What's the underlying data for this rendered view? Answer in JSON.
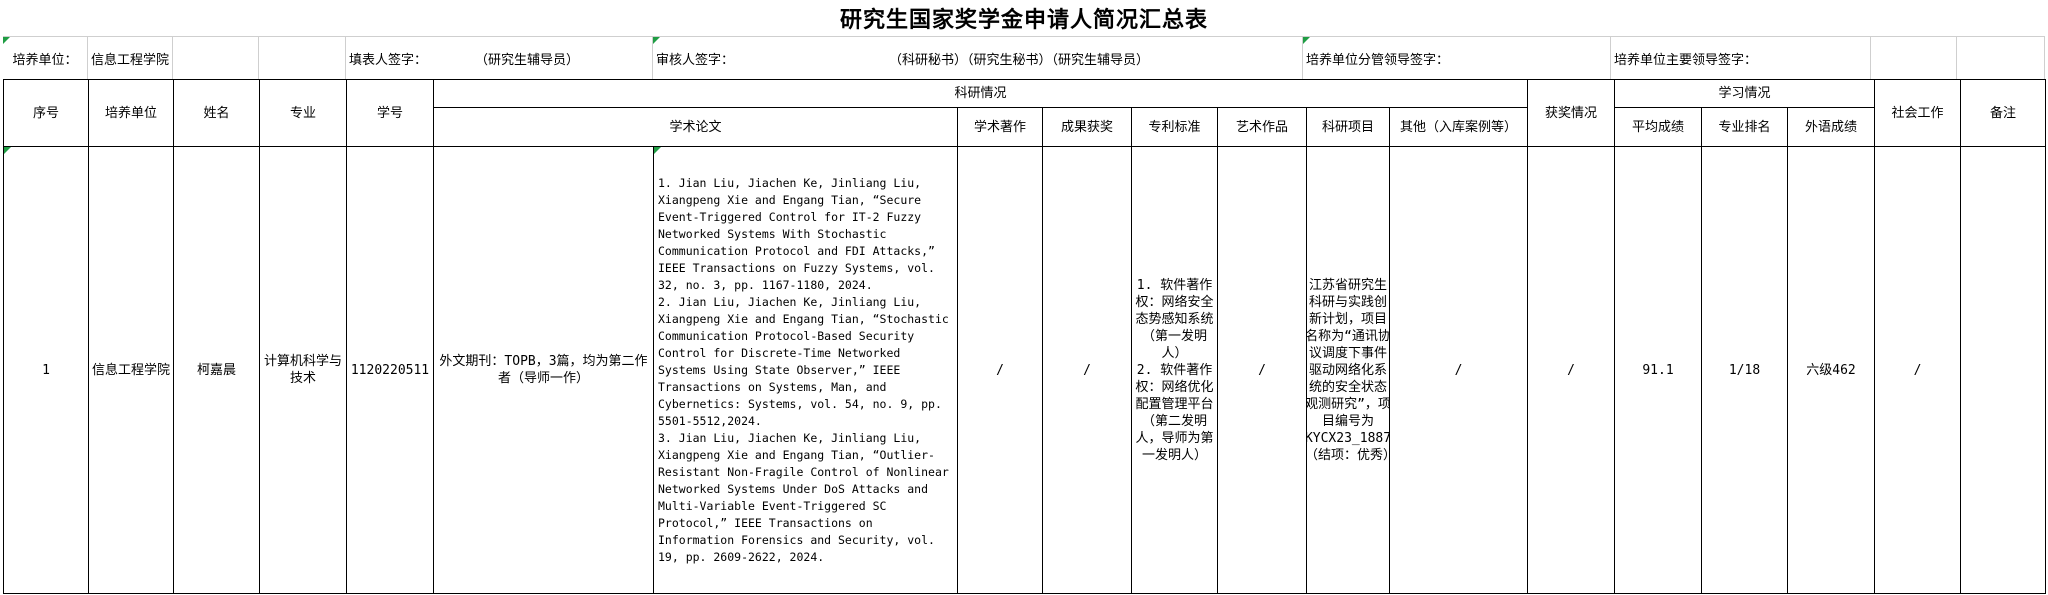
{
  "title": "研究生国家奖学金申请人简况汇总表",
  "meta": {
    "unit_label": "培养单位：",
    "unit_value": "信息工程学院",
    "form_filler_label": "填表人签字：",
    "form_filler_role": "（研究生辅导员）",
    "reviewer_label": "审核人签字：",
    "reviewer_roles": "（科研秘书）（研究生秘书）（研究生辅导员）",
    "deputy_leader_label": "培养单位分管领导签字：",
    "chief_leader_label": "培养单位主要领导签字："
  },
  "headers": {
    "index": "序号",
    "unit": "培养单位",
    "name": "姓名",
    "major": "专业",
    "student_id": "学号",
    "research": "科研情况",
    "papers": "学术论文",
    "monographs": "学术著作",
    "achievement_awards": "成果获奖",
    "patents_standards": "专利标准",
    "artworks": "艺术作品",
    "research_projects": "科研项目",
    "other": "其他（入库案例等）",
    "awards": "获奖情况",
    "study": "学习情况",
    "avg_score": "平均成绩",
    "major_rank": "专业排名",
    "foreign_language": "外语成绩",
    "social_work": "社会工作",
    "remarks": "备注"
  },
  "row": {
    "index": "1",
    "unit": "信息工程学院",
    "name": "柯嘉晨",
    "major": "计算机科学与技术",
    "student_id": "1120220511",
    "papers_summary": "外文期刊：TOPB，3篇，均为第二作者（导师一作）",
    "papers_detail": "1. Jian Liu, Jiachen Ke, Jinliang Liu, Xiangpeng Xie and Engang Tian, “Secure Event-Triggered Control for IT-2 Fuzzy Networked Systems With Stochastic Communication Protocol and FDI Attacks,” IEEE Transactions on Fuzzy Systems, vol. 32, no. 3, pp. 1167-1180, 2024.\n2. Jian Liu, Jiachen Ke, Jinliang Liu, Xiangpeng Xie and Engang Tian, “Stochastic Communication Protocol-Based Security Control for Discrete-Time Networked Systems Using State Observer,” IEEE Transactions on Systems, Man, and Cybernetics: Systems, vol. 54, no. 9, pp. 5501-5512,2024.\n3. Jian Liu, Jiachen Ke, Jinliang Liu, Xiangpeng Xie and Engang Tian, “Outlier-Resistant Non-Fragile Control of Nonlinear Networked Systems Under DoS Attacks and Multi-Variable Event-Triggered SC Protocol,” IEEE Transactions on Information Forensics and Security, vol. 19, pp. 2609-2622, 2024.",
    "monographs": "/",
    "achievement_awards": "/",
    "patents_standards": "1. 软件著作权：网络安全态势感知系统（第一发明人）\n2. 软件著作权：网络优化配置管理平台（第二发明人，导师为第一发明人）",
    "artworks": "/",
    "research_projects": "江苏省研究生科研与实践创新计划，项目名称为“通讯协议调度下事件驱动网络化系统的安全状态观测研究”，项目编号为KYCX23_1887（结项：优秀）",
    "other": "/",
    "awards": "/",
    "avg_score": "91.1",
    "major_rank": "1/18",
    "foreign_language": "六级462",
    "social_work": "/",
    "remarks": ""
  }
}
